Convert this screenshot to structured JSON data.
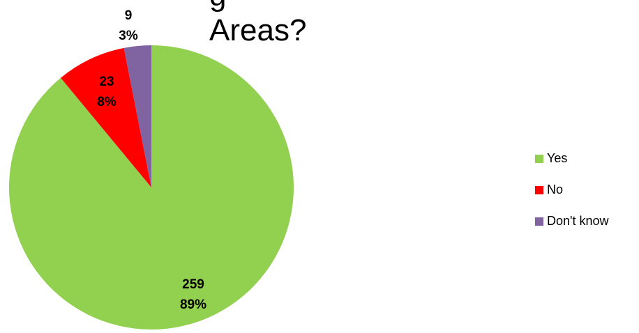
{
  "chart_data": {
    "type": "pie",
    "title_lines": [
      "g",
      "Areas?"
    ],
    "slices": [
      {
        "name": "Yes",
        "value": 259,
        "percent_label": "89%",
        "color": "#92D050"
      },
      {
        "name": "No",
        "value": 23,
        "percent_label": "8%",
        "color": "#FF0000"
      },
      {
        "name": "Don't know",
        "value": 9,
        "percent_label": "3%",
        "color": "#8064A2"
      }
    ],
    "legend_position": "right",
    "start_angle_deg": 0,
    "direction": "clockwise"
  }
}
